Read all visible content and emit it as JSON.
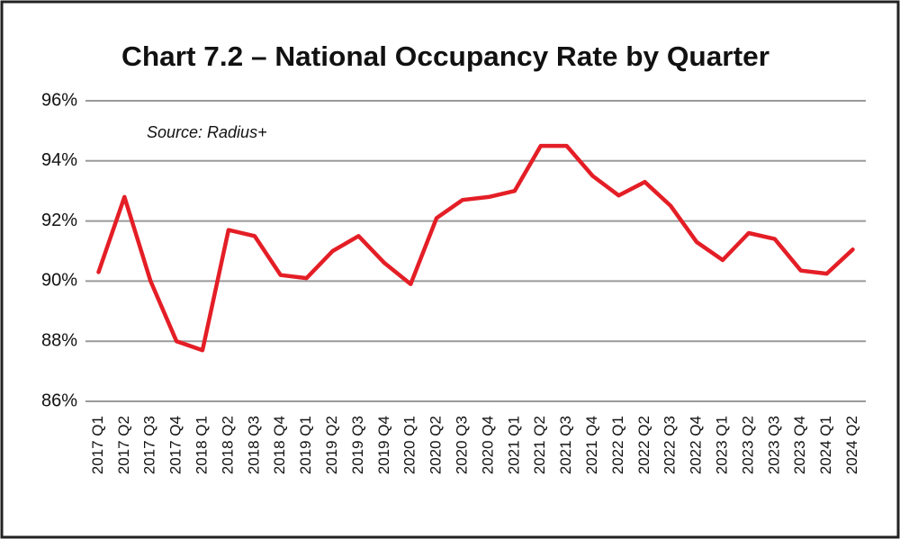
{
  "chart_data": {
    "type": "line",
    "title": "Chart 7.2 – National Occupancy Rate by Quarter",
    "annotation": "Source: Radius+",
    "categories": [
      "2017 Q1",
      "2017 Q2",
      "2017 Q3",
      "2017 Q4",
      "2018 Q1",
      "2018 Q2",
      "2018 Q3",
      "2018 Q4",
      "2019 Q1",
      "2019 Q2",
      "2019 Q3",
      "2019 Q4",
      "2020 Q1",
      "2020 Q2",
      "2020 Q3",
      "2020 Q4",
      "2021 Q1",
      "2021 Q2",
      "2021 Q3",
      "2021 Q4",
      "2022 Q1",
      "2022 Q2",
      "2022 Q3",
      "2022 Q4",
      "2023 Q1",
      "2023 Q2",
      "2023 Q3",
      "2023 Q4",
      "2024 Q1",
      "2024 Q2"
    ],
    "values": [
      90.3,
      92.8,
      90.0,
      88.0,
      87.7,
      91.7,
      91.5,
      90.2,
      90.1,
      91.0,
      91.5,
      90.6,
      89.9,
      92.1,
      92.7,
      92.8,
      93.0,
      94.5,
      94.5,
      93.5,
      92.85,
      93.3,
      92.5,
      91.3,
      90.7,
      91.6,
      91.4,
      90.35,
      90.25,
      91.05
    ],
    "color": "#e41e26",
    "ylim": [
      86,
      96
    ],
    "yticks": [
      {
        "value": 86,
        "label": "86%"
      },
      {
        "value": 88,
        "label": "88%"
      },
      {
        "value": 90,
        "label": "90%"
      },
      {
        "value": 92,
        "label": "92%"
      },
      {
        "value": 94,
        "label": "94%"
      },
      {
        "value": 96,
        "label": "96%"
      }
    ],
    "grid": true
  }
}
